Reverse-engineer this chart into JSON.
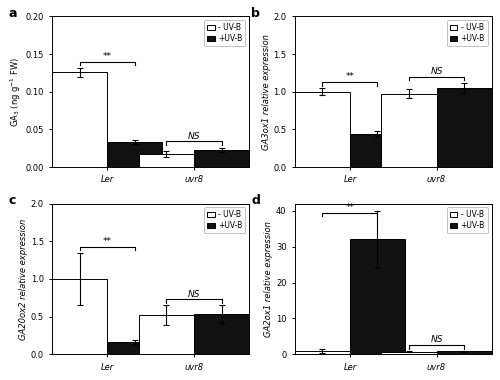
{
  "panels": [
    {
      "label": "a",
      "ylabel": "GA$_3$ (ng g$^{-1}$ FW)",
      "ylabel_italic": false,
      "ylim": [
        0,
        0.2
      ],
      "yticks": [
        0.0,
        0.05,
        0.1,
        0.15,
        0.2
      ],
      "yticklabels": [
        "0.00",
        "0.05",
        "0.10",
        "0.15",
        "0.20"
      ],
      "groups": [
        "Ler",
        "uvr8"
      ],
      "minus_uvb": [
        0.126,
        0.018
      ],
      "plus_uvb": [
        0.033,
        0.023
      ],
      "minus_err": [
        0.006,
        0.004
      ],
      "plus_err": [
        0.003,
        0.003
      ],
      "sig": [
        "**",
        "NS"
      ]
    },
    {
      "label": "b",
      "ylabel": "GA3ox1 relative expression",
      "ylabel_italic": true,
      "ylim": [
        0,
        2.0
      ],
      "yticks": [
        0.0,
        0.5,
        1.0,
        1.5,
        2.0
      ],
      "yticklabels": [
        "0.0",
        "0.5",
        "1.0",
        "1.5",
        "2.0"
      ],
      "groups": [
        "Ler",
        "uvr8"
      ],
      "minus_uvb": [
        1.0,
        0.97
      ],
      "plus_uvb": [
        0.44,
        1.05
      ],
      "minus_err": [
        0.05,
        0.06
      ],
      "plus_err": [
        0.04,
        0.07
      ],
      "sig": [
        "**",
        "NS"
      ]
    },
    {
      "label": "c",
      "ylabel": "GA20ox2 relative expression",
      "ylabel_italic": true,
      "ylim": [
        0,
        2.0
      ],
      "yticks": [
        0.0,
        0.5,
        1.0,
        1.5,
        2.0
      ],
      "yticklabels": [
        "0.0",
        "0.5",
        "1.0",
        "1.5",
        "2.0"
      ],
      "groups": [
        "Ler",
        "uvr8"
      ],
      "minus_uvb": [
        1.0,
        0.52
      ],
      "plus_uvb": [
        0.16,
        0.53
      ],
      "minus_err": [
        0.35,
        0.13
      ],
      "plus_err": [
        0.03,
        0.12
      ],
      "sig": [
        "**",
        "NS"
      ]
    },
    {
      "label": "d",
      "ylabel": "GA2ox1 relative expression",
      "ylabel_italic": true,
      "ylim": [
        0,
        42
      ],
      "yticks": [
        0,
        10,
        20,
        30,
        40
      ],
      "yticklabels": [
        "0",
        "10",
        "20",
        "30",
        "40"
      ],
      "groups": [
        "Ler",
        "uvr8"
      ],
      "minus_uvb": [
        1.0,
        0.7
      ],
      "plus_uvb": [
        32.0,
        0.8
      ],
      "minus_err": [
        0.5,
        0.15
      ],
      "plus_err": [
        8.0,
        0.15
      ],
      "sig": [
        "**",
        "NS"
      ]
    }
  ],
  "bar_width": 0.28,
  "minus_color": "white",
  "plus_color": "#111111",
  "edge_color": "black",
  "background_color": "white",
  "axes_facecolor": "white",
  "group_centers": [
    0.28,
    0.72
  ],
  "xlim": [
    0.0,
    1.0
  ]
}
